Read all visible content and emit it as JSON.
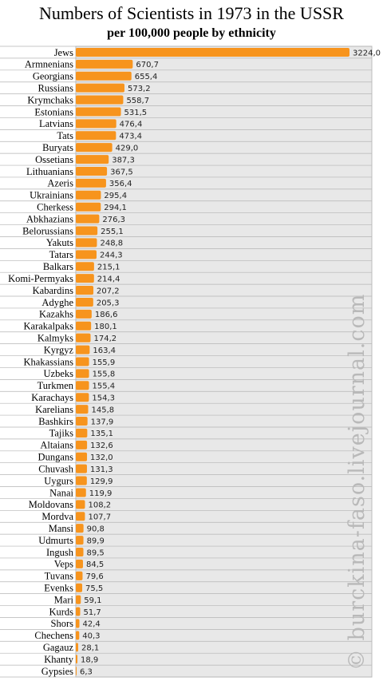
{
  "chart_data": {
    "type": "bar",
    "orientation": "horizontal",
    "title": "Numbers of Scientists in 1973 in the USSR",
    "subtitle": "per 100,000 people by ethnicity",
    "watermark": "© burckina-faso.livejournal.com",
    "bar_color": "#f7941d",
    "plot_background": "#e8e8e8",
    "grid": true,
    "xlim": [
      0,
      3350
    ],
    "categories": [
      "Jews",
      "Armnenians",
      "Georgians",
      "Russians",
      "Krymchaks",
      "Estonians",
      "Latvians",
      "Tats",
      "Buryats",
      "Ossetians",
      "Lithuanians",
      "Azeris",
      "Ukrainians",
      "Cherkess",
      "Abkhazians",
      "Belorussians",
      "Yakuts",
      "Tatars",
      "Balkars",
      "Komi-Permyaks",
      "Kabardins",
      "Adyghe",
      "Kazakhs",
      "Karakalpaks",
      "Kalmyks",
      "Kyrgyz",
      "Khakassians",
      "Uzbeks",
      "Turkmen",
      "Karachays",
      "Karelians",
      "Bashkirs",
      "Tajiks",
      "Altaians",
      "Dungans",
      "Chuvash",
      "Uygurs",
      "Nanai",
      "Moldovans",
      "Mordva",
      "Mansi",
      "Udmurts",
      "Ingush",
      "Veps",
      "Tuvans",
      "Evenks",
      "Mari",
      "Kurds",
      "Shors",
      "Chechens",
      "Gagauz",
      "Khanty",
      "Gypsies"
    ],
    "values": [
      3224.0,
      670.7,
      655.4,
      573.2,
      558.7,
      531.5,
      476.4,
      473.4,
      429.0,
      387.3,
      367.5,
      356.4,
      295.4,
      294.1,
      276.3,
      255.1,
      248.8,
      244.3,
      215.1,
      214.4,
      207.2,
      205.3,
      186.6,
      180.1,
      174.2,
      163.4,
      155.9,
      155.8,
      155.4,
      154.3,
      145.8,
      137.9,
      135.1,
      132.6,
      132.0,
      131.3,
      129.9,
      119.9,
      108.2,
      107.7,
      90.8,
      89.9,
      89.5,
      84.5,
      79.6,
      75.5,
      59.1,
      51.7,
      42.4,
      40.3,
      28.1,
      18.9,
      6.3
    ],
    "value_labels": [
      "3224,0",
      "670,7",
      "655,4",
      "573,2",
      "558,7",
      "531,5",
      "476,4",
      "473,4",
      "429,0",
      "387,3",
      "367,5",
      "356,4",
      "295,4",
      "294,1",
      "276,3",
      "255,1",
      "248,8",
      "244,3",
      "215,1",
      "214,4",
      "207,2",
      "205,3",
      "186,6",
      "180,1",
      "174,2",
      "163,4",
      "155,9",
      "155,8",
      "155,4",
      "154,3",
      "145,8",
      "137,9",
      "135,1",
      "132,6",
      "132,0",
      "131,3",
      "129,9",
      "119,9",
      "108,2",
      "107,7",
      "90,8",
      "89,9",
      "89,5",
      "84,5",
      "79,6",
      "75,5",
      "59,1",
      "51,7",
      "42,4",
      "40,3",
      "28,1",
      "18,9",
      "6,3"
    ]
  }
}
